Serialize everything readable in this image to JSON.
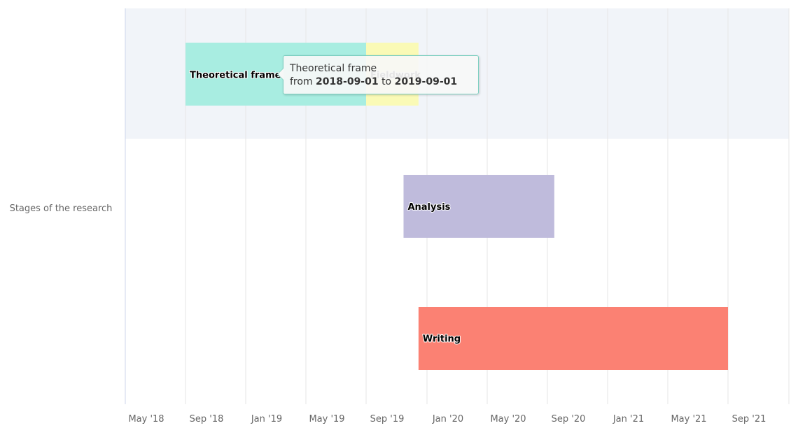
{
  "chart_data": {
    "type": "xrange",
    "category_label": "Stages of the research",
    "x_ticks": [
      "May '18",
      "Sep '18",
      "Jan '19",
      "May '19",
      "Sep '19",
      "Jan '20",
      "May '20",
      "Sep '20",
      "Jan '21",
      "May '21",
      "Sep '21"
    ],
    "xlim": [
      "2018-05-01",
      "2021-09-01"
    ],
    "grid": true,
    "tasks": [
      {
        "name": "Theoretical frame",
        "start": "2018-09-01",
        "end": "2019-09-01",
        "row": 0,
        "color": "#a8ede1"
      },
      {
        "name": "Fieldwork",
        "start": "2019-09-01",
        "end": "2019-12-15",
        "row": 0,
        "color": "#fafab6"
      },
      {
        "name": "Analysis",
        "start": "2019-11-15",
        "end": "2020-09-15",
        "row": 1,
        "color": "#bfbbdc"
      },
      {
        "name": "Writing",
        "start": "2019-12-15",
        "end": "2021-09-01",
        "row": 2,
        "color": "#fb8173"
      }
    ],
    "highlight_row_color": "#f1f4f9"
  },
  "tooltip": {
    "title": "Theoretical frame",
    "from_label": "from",
    "start": "2018-09-01",
    "to_label": "to",
    "end": "2019-09-01"
  }
}
